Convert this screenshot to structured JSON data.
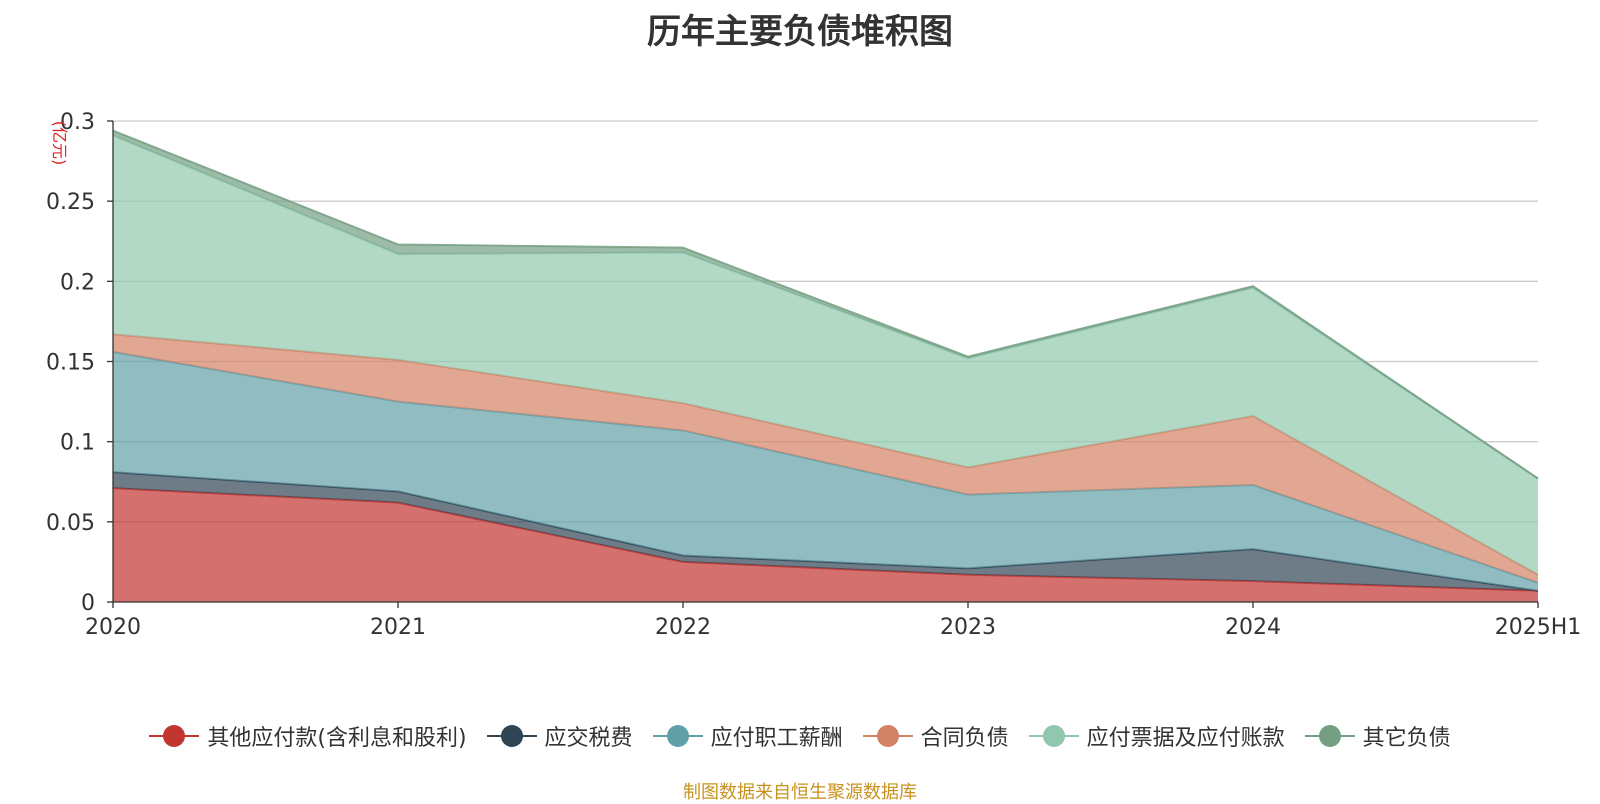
{
  "chart_data": {
    "type": "area",
    "stacked": true,
    "title": "历年主要负债堆积图",
    "unit_label": "(亿元)",
    "x": [
      "2020",
      "2021",
      "2022",
      "2023",
      "2024",
      "2025H1"
    ],
    "ylim": [
      0,
      0.3
    ],
    "yticks": [
      "0",
      "0.05",
      "0.1",
      "0.15",
      "0.2",
      "0.25",
      "0.3"
    ],
    "ytick_values": [
      0,
      0.05,
      0.1,
      0.15,
      0.2,
      0.25,
      0.3
    ],
    "grid": true,
    "legend_position": "bottom",
    "series": [
      {
        "name": "其他应付款(含利息和股利)",
        "color": "#c23531",
        "values": [
          0.071,
          0.062,
          0.025,
          0.017,
          0.013,
          0.007
        ]
      },
      {
        "name": "应交税费",
        "color": "#2f4554",
        "values": [
          0.01,
          0.007,
          0.004,
          0.004,
          0.02,
          0.0
        ]
      },
      {
        "name": "应付职工薪酬",
        "color": "#61a0a8",
        "values": [
          0.075,
          0.056,
          0.078,
          0.046,
          0.04,
          0.005
        ]
      },
      {
        "name": "合同负债",
        "color": "#d48265",
        "values": [
          0.011,
          0.026,
          0.017,
          0.017,
          0.043,
          0.005
        ]
      },
      {
        "name": "应付票据及应付账款",
        "color": "#91c7ae",
        "values": [
          0.124,
          0.066,
          0.094,
          0.068,
          0.08,
          0.06
        ]
      },
      {
        "name": "其它负债",
        "color": "#749f83",
        "values": [
          0.003,
          0.006,
          0.003,
          0.001,
          0.001,
          0.0
        ]
      }
    ],
    "source": "制图数据来自恒生聚源数据库"
  }
}
